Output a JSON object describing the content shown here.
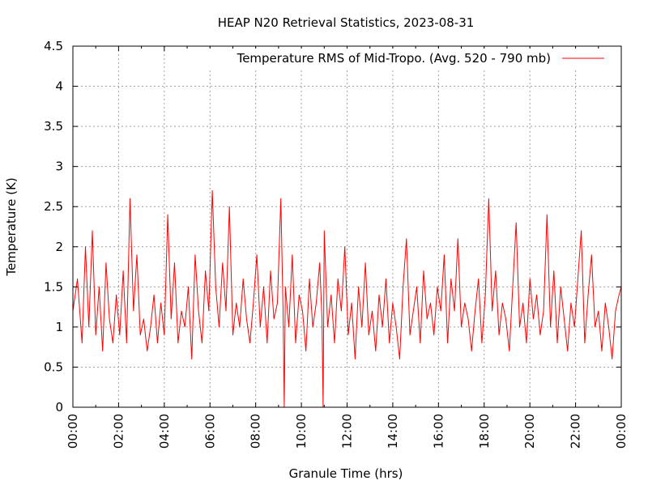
{
  "chart_data": {
    "type": "line",
    "title": "HEAP N20 Retrieval Statistics, 2023-08-31",
    "xlabel": "Granule Time (hrs)",
    "ylabel": "Temperature (K)",
    "xlim": [
      0,
      24
    ],
    "ylim": [
      0,
      4.5
    ],
    "x_ticks": [
      {
        "value": 0,
        "label": "00:00"
      },
      {
        "value": 2,
        "label": "02:00"
      },
      {
        "value": 4,
        "label": "04:00"
      },
      {
        "value": 6,
        "label": "06:00"
      },
      {
        "value": 8,
        "label": "08:00"
      },
      {
        "value": 10,
        "label": "10:00"
      },
      {
        "value": 12,
        "label": "12:00"
      },
      {
        "value": 14,
        "label": "14:00"
      },
      {
        "value": 16,
        "label": "16:00"
      },
      {
        "value": 18,
        "label": "18:00"
      },
      {
        "value": 20,
        "label": "20:00"
      },
      {
        "value": 22,
        "label": "22:00"
      },
      {
        "value": 24,
        "label": "00:00"
      }
    ],
    "y_ticks": [
      {
        "value": 0,
        "label": "0"
      },
      {
        "value": 0.5,
        "label": "0.5"
      },
      {
        "value": 1,
        "label": "1"
      },
      {
        "value": 1.5,
        "label": "1.5"
      },
      {
        "value": 2,
        "label": "2"
      },
      {
        "value": 2.5,
        "label": "2.5"
      },
      {
        "value": 3,
        "label": "3"
      },
      {
        "value": 3.5,
        "label": "3.5"
      },
      {
        "value": 4,
        "label": "4"
      },
      {
        "value": 4.5,
        "label": "4.5"
      }
    ],
    "grid": true,
    "legend_position": "top-right",
    "colors": {
      "series": "#ff0000",
      "grid": "#a0a0a0",
      "axis": "#000000"
    },
    "series": [
      {
        "name": "Temperature RMS of Mid-Tropo. (Avg. 520 - 790 mb)",
        "x": [
          0.0,
          0.2,
          0.4,
          0.55,
          0.7,
          0.85,
          1.0,
          1.15,
          1.3,
          1.45,
          1.6,
          1.75,
          1.9,
          2.05,
          2.2,
          2.35,
          2.5,
          2.65,
          2.8,
          2.95,
          3.1,
          3.25,
          3.4,
          3.55,
          3.7,
          3.85,
          4.0,
          4.15,
          4.3,
          4.45,
          4.6,
          4.75,
          4.9,
          5.05,
          5.2,
          5.35,
          5.5,
          5.65,
          5.8,
          5.95,
          6.1,
          6.25,
          6.4,
          6.55,
          6.7,
          6.85,
          7.0,
          7.15,
          7.3,
          7.45,
          7.6,
          7.75,
          7.9,
          8.05,
          8.2,
          8.35,
          8.5,
          8.65,
          8.8,
          8.95,
          9.1,
          9.2,
          9.25,
          9.3,
          9.45,
          9.6,
          9.75,
          9.9,
          10.05,
          10.2,
          10.35,
          10.5,
          10.65,
          10.8,
          10.9,
          10.95,
          11.0,
          11.15,
          11.3,
          11.45,
          11.6,
          11.75,
          11.9,
          12.05,
          12.2,
          12.35,
          12.5,
          12.65,
          12.8,
          12.95,
          13.1,
          13.25,
          13.4,
          13.55,
          13.7,
          13.85,
          14.0,
          14.15,
          14.3,
          14.45,
          14.6,
          14.75,
          14.9,
          15.05,
          15.2,
          15.35,
          15.5,
          15.65,
          15.8,
          15.95,
          16.1,
          16.25,
          16.4,
          16.55,
          16.7,
          16.85,
          17.0,
          17.15,
          17.3,
          17.45,
          17.6,
          17.75,
          17.9,
          18.05,
          18.2,
          18.35,
          18.5,
          18.65,
          18.8,
          18.95,
          19.1,
          19.25,
          19.4,
          19.55,
          19.7,
          19.85,
          20.0,
          20.15,
          20.3,
          20.45,
          20.6,
          20.75,
          20.9,
          21.05,
          21.2,
          21.35,
          21.5,
          21.65,
          21.8,
          21.95,
          22.1,
          22.25,
          22.4,
          22.55,
          22.7,
          22.85,
          23.0,
          23.15,
          23.3,
          23.45,
          23.6,
          23.75,
          23.9,
          24.0
        ],
        "y": [
          1.2,
          1.6,
          0.8,
          2.0,
          1.0,
          2.2,
          0.9,
          1.5,
          0.7,
          1.8,
          1.1,
          0.8,
          1.4,
          0.9,
          1.7,
          0.8,
          2.6,
          1.2,
          1.9,
          0.9,
          1.1,
          0.7,
          1.0,
          1.4,
          0.8,
          1.3,
          0.9,
          2.4,
          1.1,
          1.8,
          0.8,
          1.2,
          1.0,
          1.5,
          0.6,
          1.9,
          1.2,
          0.8,
          1.7,
          1.2,
          2.7,
          1.5,
          1.0,
          1.8,
          1.2,
          2.5,
          0.9,
          1.3,
          1.0,
          1.6,
          1.1,
          0.8,
          1.3,
          1.9,
          1.0,
          1.5,
          0.8,
          1.7,
          1.1,
          1.3,
          2.6,
          1.2,
          0.0,
          1.5,
          1.0,
          1.9,
          0.8,
          1.4,
          1.2,
          0.7,
          1.6,
          1.0,
          1.3,
          1.8,
          1.1,
          0.0,
          2.2,
          1.0,
          1.4,
          0.8,
          1.6,
          1.2,
          2.0,
          0.9,
          1.3,
          0.6,
          1.5,
          1.0,
          1.8,
          0.9,
          1.2,
          0.7,
          1.4,
          1.0,
          1.6,
          0.8,
          1.3,
          1.0,
          0.6,
          1.5,
          2.1,
          0.9,
          1.2,
          1.5,
          0.8,
          1.7,
          1.1,
          1.3,
          0.9,
          1.5,
          1.2,
          1.9,
          0.8,
          1.6,
          1.2,
          2.1,
          1.0,
          1.3,
          1.1,
          0.7,
          1.2,
          1.6,
          0.8,
          1.4,
          2.6,
          1.2,
          1.7,
          0.9,
          1.3,
          1.1,
          0.7,
          1.5,
          2.3,
          1.0,
          1.3,
          0.8,
          1.6,
          1.1,
          1.4,
          0.9,
          1.2,
          2.4,
          1.0,
          1.7,
          0.8,
          1.5,
          1.1,
          0.7,
          1.3,
          1.0,
          1.6,
          2.2,
          0.8,
          1.4,
          1.9,
          1.0,
          1.2,
          0.7,
          1.3,
          1.0,
          0.6,
          1.2,
          1.4,
          1.5
        ]
      }
    ]
  }
}
